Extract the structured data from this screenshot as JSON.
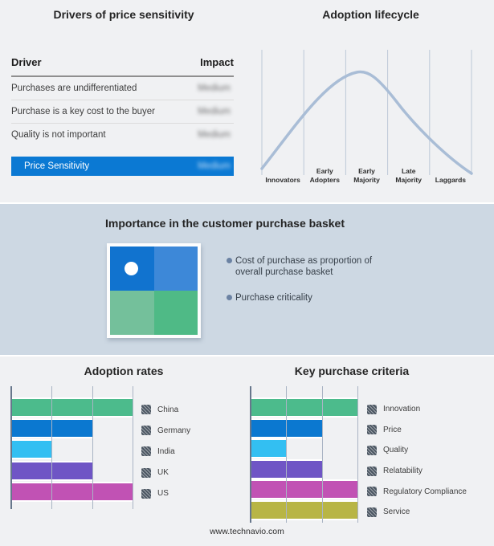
{
  "page": {
    "background": "#f0f1f3",
    "band_background": "#cdd8e3",
    "footer": "www.technavio.com"
  },
  "drivers_table": {
    "title": "Drivers of price sensitivity",
    "columns": {
      "driver": "Driver",
      "impact": "Impact"
    },
    "rows": [
      {
        "driver": "Purchases are undifferentiated",
        "impact": "Medium",
        "impact_blurred": true,
        "highlighted": false
      },
      {
        "driver": "Purchase is a key cost to the buyer",
        "impact": "Medium",
        "impact_blurred": true,
        "highlighted": false
      },
      {
        "driver": "Quality is not important",
        "impact": "Medium",
        "impact_blurred": true,
        "highlighted": false
      },
      {
        "driver": "Price Sensitivity",
        "impact": "Medium",
        "impact_blurred": true,
        "highlighted": true
      }
    ],
    "highlight_color": "#0b79d3"
  },
  "purchase_basket": {
    "title": "Importance in the customer purchase basket",
    "bullets": [
      "Cost of purchase as proportion of overall purchase basket",
      "Purchase criticality"
    ],
    "bullet_color": "#6b82a3",
    "quadrant": {
      "tl": "#1173cf",
      "tr": "#3d88d8",
      "bl": "#74c09b",
      "br": "#4fba86",
      "marker": "#ffffff"
    }
  },
  "chart_data": [
    {
      "type": "table",
      "title": "Drivers of price sensitivity",
      "columns": [
        "Driver",
        "Impact"
      ],
      "rows": [
        [
          "Purchases are undifferentiated",
          "Medium"
        ],
        [
          "Purchase is a key cost to the buyer",
          "Medium"
        ],
        [
          "Quality is not important",
          "Medium"
        ],
        [
          "Price Sensitivity",
          "Medium"
        ]
      ],
      "note": "Impact values shown blurred; Price Sensitivity row highlighted in blue"
    },
    {
      "type": "line",
      "title": "Adoption lifecycle",
      "x": [
        "Innovators",
        "Early Adopters",
        "Early Majority",
        "Late Majority",
        "Laggards"
      ],
      "y_normalized": [
        0.29,
        0.8,
        1.0,
        0.62,
        0.15
      ],
      "curve_color": "#a9bdd6",
      "divider_color": "#bdc9d7",
      "note": "bell-shaped adoption curve over five stages, no numeric axes"
    },
    {
      "type": "bar",
      "title": "Adoption rates",
      "orientation": "horizontal",
      "categories": [
        "China",
        "Germany",
        "India",
        "UK",
        "US"
      ],
      "values": [
        3,
        2,
        1,
        2,
        3
      ],
      "xlim": [
        0,
        3
      ],
      "value_unit": "relative gridline units (axis unlabeled)",
      "colors": [
        "#4cbb8c",
        "#0b78d0",
        "#33bff2",
        "#6f55c5",
        "#c152b4"
      ],
      "grid": true,
      "legend_position": "right"
    },
    {
      "type": "bar",
      "title": "Key purchase criteria",
      "orientation": "horizontal",
      "categories": [
        "Innovation",
        "Price",
        "Quality",
        "Relatability",
        "Regulatory Compliance",
        "Service"
      ],
      "values": [
        3,
        2,
        1,
        2,
        3,
        3
      ],
      "xlim": [
        0,
        3
      ],
      "value_unit": "relative gridline units (axis unlabeled)",
      "colors": [
        "#4cbb8c",
        "#0b78d0",
        "#33bff2",
        "#6f55c5",
        "#c152b4",
        "#b8b545"
      ],
      "grid": true,
      "legend_position": "right"
    }
  ]
}
